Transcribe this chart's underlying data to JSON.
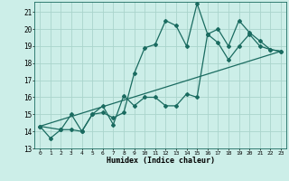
{
  "xlabel": "Humidex (Indice chaleur)",
  "bg_color": "#cceee8",
  "grid_color": "#aad4cc",
  "line_color": "#1a6b60",
  "xlim": [
    -0.5,
    23.5
  ],
  "ylim": [
    13.0,
    21.6
  ],
  "yticks": [
    13,
    14,
    15,
    16,
    17,
    18,
    19,
    20,
    21
  ],
  "xticks": [
    0,
    1,
    2,
    3,
    4,
    5,
    6,
    7,
    8,
    9,
    10,
    11,
    12,
    13,
    14,
    15,
    16,
    17,
    18,
    19,
    20,
    21,
    22,
    23
  ],
  "line1_x": [
    0,
    1,
    2,
    3,
    4,
    5,
    6,
    7,
    8,
    9,
    10,
    11,
    12,
    13,
    14,
    15,
    16,
    17,
    18,
    19,
    20,
    21,
    22,
    23
  ],
  "line1_y": [
    14.3,
    13.6,
    14.1,
    14.1,
    14.0,
    15.0,
    15.1,
    14.8,
    15.1,
    17.4,
    18.9,
    19.1,
    20.5,
    20.2,
    19.0,
    21.5,
    19.7,
    20.0,
    19.0,
    20.5,
    19.8,
    19.3,
    18.8,
    18.7
  ],
  "line2_x": [
    0,
    2,
    3,
    4,
    5,
    6,
    7,
    8,
    9,
    10,
    11,
    12,
    13,
    14,
    15,
    16,
    17,
    18,
    19,
    20,
    21,
    22,
    23
  ],
  "line2_y": [
    14.3,
    14.1,
    15.0,
    14.0,
    15.0,
    15.5,
    14.4,
    16.1,
    15.5,
    16.0,
    16.0,
    15.5,
    15.5,
    16.2,
    16.0,
    19.7,
    19.2,
    18.2,
    19.0,
    19.7,
    19.0,
    18.8,
    18.7
  ],
  "line3_x": [
    0,
    23
  ],
  "line3_y": [
    14.3,
    18.7
  ]
}
